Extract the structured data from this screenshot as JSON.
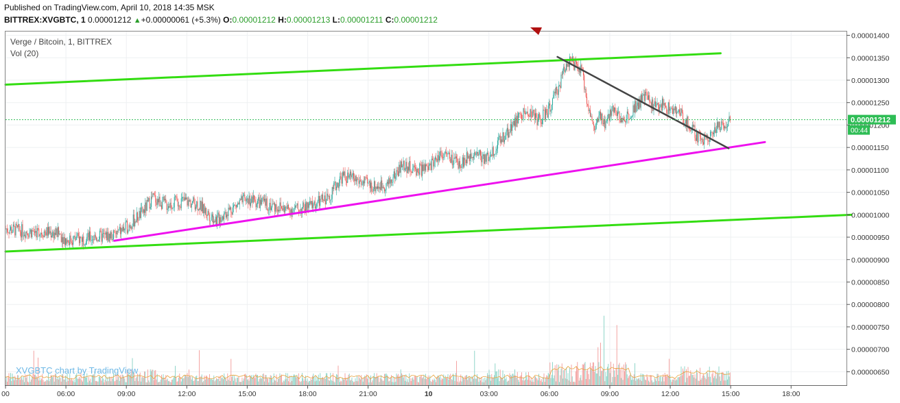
{
  "header": {
    "published": "Published on TradingView.com, April 10, 2018 14:35 MSK",
    "symbol": "BITTREX:XVGBTC, 1",
    "last": "0.00001212",
    "change": "+0.00000061 (+5.3%)",
    "o_label": "O:",
    "o_val": "0.00001212",
    "h_label": "H:",
    "h_val": "0.00001213",
    "l_label": "L:",
    "l_val": "0.00001211",
    "c_label": "C:",
    "c_val": "0.00001212"
  },
  "legend": {
    "main": "Verge / Bitcoin, 1, BITTREX",
    "vol": "Vol (20)"
  },
  "watermark": "XVGBTC chart by TradingView",
  "price_label": "0.00001212",
  "countdown": "00:44",
  "colors": {
    "up": "#26a69a",
    "down": "#ef5350",
    "green_line": "#33dd11",
    "magenta_line": "#ee11ee",
    "dark_line": "#444444",
    "price_tag": "#2ebd55"
  },
  "chart_data": {
    "type": "line",
    "title": "Verge / Bitcoin, 1, BITTREX",
    "ylim": [
      6.2e-06,
      1.41e-05
    ],
    "y_ticks": [
      "0.00001400",
      "0.00001350",
      "0.00001300",
      "0.00001250",
      "0.00001200",
      "0.00001150",
      "0.00001100",
      "0.00001050",
      "0.00001000",
      "0.00000950",
      "0.00000900",
      "0.00000850",
      "0.00000800",
      "0.00000750",
      "0.00000700",
      "0.00000650"
    ],
    "y_tick_values": [
      1.4e-05,
      1.35e-05,
      1.3e-05,
      1.25e-05,
      1.2e-05,
      1.15e-05,
      1.1e-05,
      1.05e-05,
      1e-05,
      9.5e-06,
      9e-06,
      8.5e-06,
      8e-06,
      7.5e-06,
      7e-06,
      6.5e-06
    ],
    "x_ticks": [
      "00",
      "06:00",
      "09:00",
      "12:00",
      "15:00",
      "18:00",
      "21:00",
      "10",
      "03:00",
      "06:00",
      "09:00",
      "12:00",
      "15:00",
      "18:00"
    ],
    "x_tick_hours": [
      3,
      6,
      9,
      12,
      15,
      18,
      21,
      24,
      27,
      30,
      33,
      36,
      39,
      42
    ],
    "x_range_hours": [
      3.0,
      44.75
    ],
    "series": [
      {
        "x_hours": [
          3.0,
          4.0,
          5.0,
          5.7,
          6.0,
          6.5,
          7.5,
          8.4,
          9.0,
          9.8,
          10.3,
          11.0,
          11.8,
          12.5,
          13.0,
          13.5,
          14.0,
          15.0,
          15.8,
          16.5,
          17.0,
          17.7,
          18.3,
          19.0,
          19.7,
          20.3,
          20.8,
          21.3,
          22.0,
          22.7,
          23.3,
          24.0,
          24.3,
          24.7,
          25.3,
          25.8,
          26.3,
          26.8,
          27.2,
          28.0,
          28.5,
          29.0,
          29.5,
          30.0,
          30.5,
          30.8,
          31.0,
          31.3,
          31.6,
          31.9,
          32.2,
          32.5,
          32.8,
          33.2,
          33.6,
          34.2,
          34.8,
          35.2,
          35.6,
          36.0,
          36.5,
          37.0,
          37.5,
          38.0,
          38.5,
          39.0
        ],
        "close": [
          9.69e-06,
          9.63e-06,
          9.62e-06,
          9.57e-06,
          9.43e-06,
          9.46e-06,
          9.5e-06,
          9.54e-06,
          9.72e-06,
          1.005e-05,
          1.038e-05,
          1.022e-05,
          1.031e-05,
          1.025e-05,
          1.005e-05,
          9.88e-06,
          1.008e-05,
          1.035e-05,
          1.025e-05,
          1.018e-05,
          1.012e-05,
          1.013e-05,
          1.022e-05,
          1.038e-05,
          1.085e-05,
          1.08e-05,
          1.07e-05,
          1.063e-05,
          1.068e-05,
          1.112e-05,
          1.1e-05,
          1.102e-05,
          1.123e-05,
          1.14e-05,
          1.115e-05,
          1.12e-05,
          1.145e-05,
          1.122e-05,
          1.143e-05,
          1.19e-05,
          1.218e-05,
          1.23e-05,
          1.21e-05,
          1.235e-05,
          1.29e-05,
          1.335e-05,
          1.345e-05,
          1.33e-05,
          1.32e-05,
          1.25e-05,
          1.19e-05,
          1.215e-05,
          1.2e-05,
          1.245e-05,
          1.205e-05,
          1.24e-05,
          1.265e-05,
          1.24e-05,
          1.245e-05,
          1.235e-05,
          1.225e-05,
          1.195e-05,
          1.165e-05,
          1.18e-05,
          1.2e-05,
          1.212e-05
        ]
      }
    ],
    "trendlines": [
      {
        "name": "upper-green",
        "points": [
          [
            3.0,
            1.29e-05
          ],
          [
            38.5,
            1.36e-05
          ]
        ]
      },
      {
        "name": "lower-green",
        "points": [
          [
            3.0,
            9.18e-06
          ],
          [
            45.0,
            1e-05
          ]
        ]
      },
      {
        "name": "support-magenta",
        "points": [
          [
            8.4,
            9.42e-06
          ],
          [
            40.7,
            1.162e-05
          ]
        ]
      },
      {
        "name": "resistance-dark",
        "points": [
          [
            30.4,
            1.352e-05
          ],
          [
            38.9,
            1.148e-05
          ]
        ]
      }
    ]
  }
}
